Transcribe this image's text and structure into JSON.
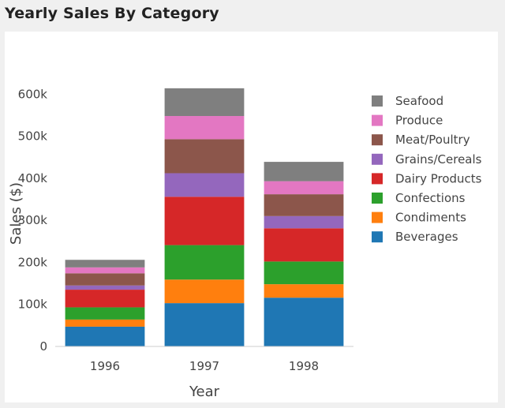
{
  "header": {
    "title": "Yearly Sales By Category"
  },
  "chart_data": {
    "type": "bar",
    "stacked": true,
    "title": "",
    "xlabel": "Year",
    "ylabel": "Sales ($)",
    "ylim": [
      0,
      640000
    ],
    "yticks": [
      0,
      100000,
      200000,
      300000,
      400000,
      500000,
      600000
    ],
    "ytick_labels": [
      "0",
      "100k",
      "200k",
      "300k",
      "400k",
      "500k",
      "600k"
    ],
    "categories": [
      "1996",
      "1997",
      "1998"
    ],
    "legend_position": "right",
    "series": [
      {
        "name": "Beverages",
        "color": "#1f77b4",
        "values": [
          47000,
          103000,
          116000
        ]
      },
      {
        "name": "Condiments",
        "color": "#ff7f0e",
        "values": [
          17000,
          56000,
          32000
        ]
      },
      {
        "name": "Confections",
        "color": "#2ca02c",
        "values": [
          29000,
          82000,
          54000
        ]
      },
      {
        "name": "Dairy Products",
        "color": "#d62728",
        "values": [
          42000,
          115000,
          79000
        ]
      },
      {
        "name": "Grains/Cereals",
        "color": "#9467bd",
        "values": [
          10000,
          56000,
          29000
        ]
      },
      {
        "name": "Meat/Poultry",
        "color": "#8c564b",
        "values": [
          29000,
          81000,
          52000
        ]
      },
      {
        "name": "Produce",
        "color": "#e377c2",
        "values": [
          14000,
          55000,
          31000
        ]
      },
      {
        "name": "Seafood",
        "color": "#7f7f7f",
        "values": [
          18000,
          66000,
          46000
        ]
      }
    ]
  }
}
